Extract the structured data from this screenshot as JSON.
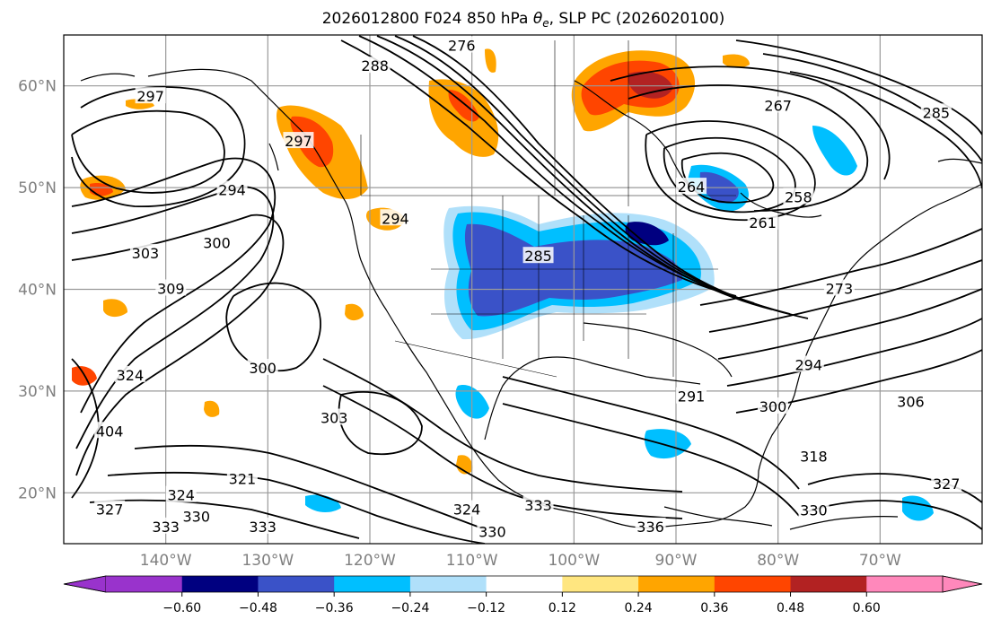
{
  "title": {
    "prefix": "2026012800 F024 850 hPa ",
    "symbol_main": "θ",
    "symbol_sub": "e",
    "suffix": ", SLP PC (2026020100)"
  },
  "map": {
    "lon_range": [
      -150,
      -60
    ],
    "lat_range": [
      15,
      65
    ],
    "lat_ticks": [
      {
        "lat": 60,
        "label": "60°N"
      },
      {
        "lat": 50,
        "label": "50°N"
      },
      {
        "lat": 40,
        "label": "40°N"
      },
      {
        "lat": 30,
        "label": "30°N"
      },
      {
        "lat": 20,
        "label": "20°N"
      }
    ],
    "lon_ticks": [
      {
        "lon": -140,
        "label": "140°W"
      },
      {
        "lon": -130,
        "label": "130°W"
      },
      {
        "lon": -120,
        "label": "120°W"
      },
      {
        "lon": -110,
        "label": "110°W"
      },
      {
        "lon": -100,
        "label": "100°W"
      },
      {
        "lon": -90,
        "label": "90°W"
      },
      {
        "lon": -80,
        "label": "80°W"
      },
      {
        "lon": -70,
        "label": "70°W"
      }
    ],
    "contour_labels": [
      {
        "text": "297",
        "lon": -141.5,
        "lat": 58.9
      },
      {
        "text": "294",
        "lon": -133.5,
        "lat": 49.7
      },
      {
        "text": "303",
        "lon": -142,
        "lat": 43.5
      },
      {
        "text": "300",
        "lon": -135,
        "lat": 44.5
      },
      {
        "text": "309",
        "lon": -139.5,
        "lat": 40
      },
      {
        "text": "324",
        "lon": -143.5,
        "lat": 31.5
      },
      {
        "text": "300",
        "lon": -130.5,
        "lat": 32.2
      },
      {
        "text": "303",
        "lon": -123.5,
        "lat": 27.3
      },
      {
        "text": "321",
        "lon": -132.5,
        "lat": 21.3
      },
      {
        "text": "324",
        "lon": -138.5,
        "lat": 19.7
      },
      {
        "text": "330",
        "lon": -137,
        "lat": 17.6
      },
      {
        "text": "333",
        "lon": -140,
        "lat": 16.6
      },
      {
        "text": "333",
        "lon": -130.5,
        "lat": 16.6
      },
      {
        "text": "327",
        "lon": -145.5,
        "lat": 18.3
      },
      {
        "text": "276",
        "lon": -111,
        "lat": 63.9
      },
      {
        "text": "288",
        "lon": -119.5,
        "lat": 61.9
      },
      {
        "text": "297",
        "lon": -127,
        "lat": 54.5
      },
      {
        "text": "294",
        "lon": -117.5,
        "lat": 46.9
      },
      {
        "text": "285",
        "lon": -103.5,
        "lat": 43.2
      },
      {
        "text": "264",
        "lon": -88.5,
        "lat": 50
      },
      {
        "text": "261",
        "lon": -81.5,
        "lat": 46.5
      },
      {
        "text": "258",
        "lon": -78,
        "lat": 49
      },
      {
        "text": "267",
        "lon": -80,
        "lat": 58
      },
      {
        "text": "285",
        "lon": -64.5,
        "lat": 57.3
      },
      {
        "text": "273",
        "lon": -74,
        "lat": 40
      },
      {
        "text": "291",
        "lon": -88.5,
        "lat": 29.4
      },
      {
        "text": "294",
        "lon": -77,
        "lat": 32.5
      },
      {
        "text": "300",
        "lon": -80.5,
        "lat": 28.4
      },
      {
        "text": "306",
        "lon": -67,
        "lat": 28.9
      },
      {
        "text": "318",
        "lon": -76.5,
        "lat": 23.5
      },
      {
        "text": "327",
        "lon": -63.5,
        "lat": 20.8
      },
      {
        "text": "330",
        "lon": -76.5,
        "lat": 18.2
      },
      {
        "text": "324",
        "lon": -110.5,
        "lat": 18.3
      },
      {
        "text": "330",
        "lon": -108,
        "lat": 16.1
      },
      {
        "text": "333",
        "lon": -103.5,
        "lat": 18.7
      },
      {
        "text": "336",
        "lon": -92.5,
        "lat": 16.6
      },
      {
        "text": "404",
        "lon": -145.5,
        "lat": 26
      }
    ]
  },
  "colorbar": {
    "ticks": [
      "−0.60",
      "−0.48",
      "−0.36",
      "−0.24",
      "−0.12",
      "0.12",
      "0.24",
      "0.36",
      "0.48",
      "0.60"
    ],
    "colors": {
      "under": "#9933cc",
      "b1": "#000080",
      "b2": "#3a52c8",
      "b3": "#00bfff",
      "b4": "#b0e0fa",
      "b5": "#ffffff",
      "b6": "#ffe680",
      "b7": "#ffa500",
      "b8": "#ff4500",
      "b9": "#b22222",
      "over": "#ff88bb"
    }
  }
}
